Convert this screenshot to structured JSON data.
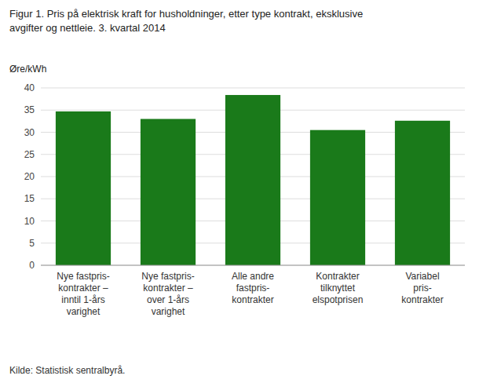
{
  "chart_data": {
    "type": "bar",
    "title": "Figur 1. Pris på elektrisk kraft for husholdninger, etter type kontrakt, eksklusive\navgifter og nettleie. 3. kvartal 2014",
    "ylabel": "Øre/kWh",
    "annotations": [
      "Kilde: Statistisk sentralbyrå."
    ],
    "categories": [
      "Nye fastpris-\nkontrakter –\ninntil 1-års\nvarighet",
      "Nye fastpris-\nkontrakter –\nover 1-års\nvarighet",
      "Alle andre\nfastpris-\nkontrakter",
      "Kontrakter\ntilknyttet\nelspotprisen",
      "Variabel\npris-\nkontrakter"
    ],
    "values": [
      34.7,
      33.0,
      38.4,
      30.5,
      32.6
    ],
    "color": "#1a7a1a",
    "ylim": [
      0,
      40
    ],
    "yticks": [
      0,
      5,
      10,
      15,
      20,
      25,
      30,
      35,
      40
    ],
    "grid": true
  }
}
